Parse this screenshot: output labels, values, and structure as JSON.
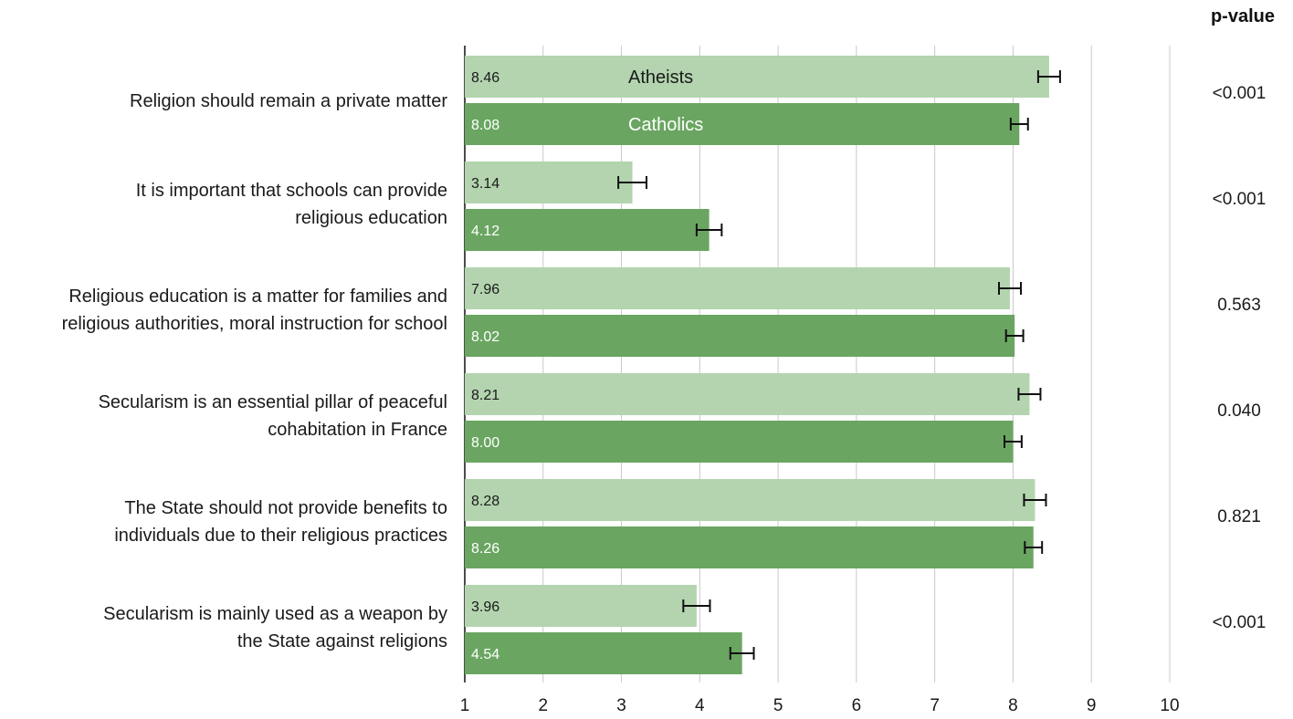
{
  "chart_data": {
    "type": "bar",
    "orientation": "horizontal",
    "categories": [
      [
        "Religion should remain a private matter"
      ],
      [
        "It is important that schools can provide",
        "religious education"
      ],
      [
        "Religious education is a matter for families and",
        "religious authorities, moral instruction for school"
      ],
      [
        "Secularism is an essential pillar of peaceful",
        "cohabitation in France"
      ],
      [
        "The State should not provide benefits to",
        "individuals due to their religious practices"
      ],
      [
        "Secularism is mainly used as a weapon by",
        "the State against religions"
      ]
    ],
    "series": [
      {
        "name": "Atheists",
        "color": "#b3d4af",
        "label_color": "#1a1a1a",
        "values": [
          8.46,
          3.14,
          7.96,
          8.21,
          8.28,
          3.96
        ],
        "value_labels": [
          "8.46",
          "3.14",
          "7.96",
          "8.21",
          "8.28",
          "3.96"
        ],
        "error": [
          0.14,
          0.18,
          0.14,
          0.14,
          0.14,
          0.17
        ]
      },
      {
        "name": "Catholics",
        "color": "#6aa661",
        "label_color": "#ffffff",
        "values": [
          8.08,
          4.12,
          8.02,
          8.0,
          8.26,
          4.54
        ],
        "value_labels": [
          "8.08",
          "4.12",
          "8.02",
          "8.00",
          "8.26",
          "4.54"
        ],
        "error": [
          0.11,
          0.16,
          0.11,
          0.11,
          0.11,
          0.15
        ]
      }
    ],
    "xlim": [
      1,
      10
    ],
    "xticks": [
      "1",
      "2",
      "3",
      "4",
      "5",
      "6",
      "7",
      "8",
      "9",
      "10"
    ],
    "grid": true,
    "p_value_header": "p-value",
    "p_values": [
      "<0.001",
      "<0.001",
      "0.563",
      "0.040",
      "0.821",
      "<0.001"
    ]
  }
}
